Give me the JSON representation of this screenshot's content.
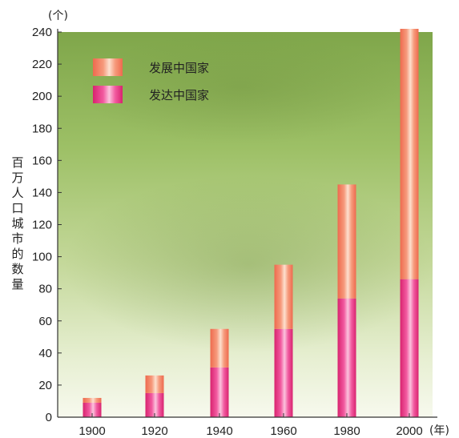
{
  "chart_data": {
    "type": "bar",
    "stacked": true,
    "categories": [
      "1900",
      "1920",
      "1940",
      "1960",
      "1980",
      "2000"
    ],
    "series": [
      {
        "name": "发达中国家",
        "values": [
          9,
          15,
          31,
          55,
          74,
          86
        ]
      },
      {
        "name": "发展中国家",
        "values": [
          3,
          11,
          24,
          40,
          71,
          156
        ]
      }
    ],
    "series_colors": [
      "#ec3f8c",
      "#f47e66"
    ],
    "ylabel": "百万人口城市的数量",
    "y_unit": "(个)",
    "x_unit": "(年)",
    "ylim": [
      0,
      240
    ],
    "yticks": [
      "0",
      "20",
      "40",
      "60",
      "80",
      "100",
      "120",
      "140",
      "160",
      "180",
      "200",
      "220",
      "240"
    ],
    "legend_position": "top-left",
    "grid": false,
    "background": "green-gradient-photo"
  }
}
